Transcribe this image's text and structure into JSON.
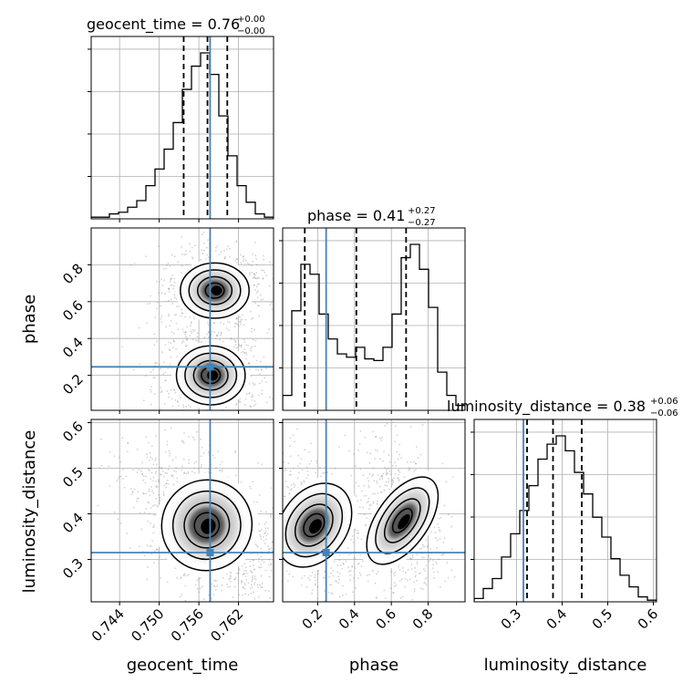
{
  "chart_data": {
    "type": "corner",
    "parameters": [
      "geocent_time",
      "phase",
      "luminosity_distance"
    ],
    "axis_labels": {
      "geocent_time": "geocent_time",
      "phase": "phase",
      "luminosity_distance": "luminosity_distance"
    },
    "ranges": {
      "geocent_time": [
        0.7397,
        0.7673
      ],
      "phase": [
        0.01,
        1.0
      ],
      "luminosity_distance": [
        0.207,
        0.607
      ]
    },
    "ticks": {
      "geocent_time": [
        {
          "value": 0.744,
          "label": "0.744"
        },
        {
          "value": 0.75,
          "label": "0.750"
        },
        {
          "value": 0.756,
          "label": "0.756"
        },
        {
          "value": 0.762,
          "label": "0.762"
        }
      ],
      "phase": [
        {
          "value": 0.2,
          "label": "0.2"
        },
        {
          "value": 0.4,
          "label": "0.4"
        },
        {
          "value": 0.6,
          "label": "0.6"
        },
        {
          "value": 0.8,
          "label": "0.8"
        }
      ],
      "luminosity_distance": [
        {
          "value": 0.3,
          "label": "0.3"
        },
        {
          "value": 0.4,
          "label": "0.4"
        },
        {
          "value": 0.5,
          "label": "0.5"
        },
        {
          "value": 0.6,
          "label": "0.6"
        }
      ]
    },
    "titles": {
      "geocent_time": {
        "prefix": "geocent_time = 0.76",
        "sup": "+0.00",
        "sub": "−0.00"
      },
      "phase": {
        "prefix": "phase = 0.41",
        "sup": "+0.27",
        "sub": "−0.27"
      },
      "luminosity_distance": {
        "prefix": "luminosity_distance = 0.38",
        "sup": "+0.06",
        "sub": "−0.06"
      }
    },
    "truths": {
      "geocent_time": 0.7577,
      "phase": 0.246,
      "luminosity_distance": 0.315
    },
    "quantiles": {
      "geocent_time": [
        0.7537,
        0.7573,
        0.7603
      ],
      "phase": [
        0.13,
        0.41,
        0.68
      ],
      "luminosity_distance": [
        0.323,
        0.38,
        0.443
      ]
    },
    "histograms": {
      "geocent_time": {
        "bins": 20,
        "counts": [
          0.01,
          0.01,
          0.03,
          0.04,
          0.07,
          0.11,
          0.2,
          0.3,
          0.42,
          0.58,
          0.78,
          0.92,
          1.0,
          0.87,
          0.62,
          0.38,
          0.2,
          0.1,
          0.03,
          0.01
        ]
      },
      "phase": {
        "bins": 20,
        "counts": [
          0.09,
          0.6,
          0.88,
          0.82,
          0.58,
          0.43,
          0.34,
          0.32,
          0.38,
          0.31,
          0.3,
          0.38,
          0.58,
          0.92,
          1.0,
          0.85,
          0.62,
          0.23,
          0.09,
          0.03
        ]
      },
      "luminosity_distance": {
        "bins": 20,
        "counts": [
          0.02,
          0.08,
          0.14,
          0.27,
          0.41,
          0.55,
          0.7,
          0.86,
          0.95,
          1.0,
          0.91,
          0.78,
          0.65,
          0.51,
          0.39,
          0.26,
          0.16,
          0.09,
          0.03,
          0.01
        ]
      }
    },
    "colors": {
      "truth": "#4682b4",
      "contour": "#000000",
      "quantile": "#000000",
      "grid": "#b0b0b0",
      "density_dark": "#000000",
      "scatter_points": "#808080"
    },
    "grid": true
  }
}
